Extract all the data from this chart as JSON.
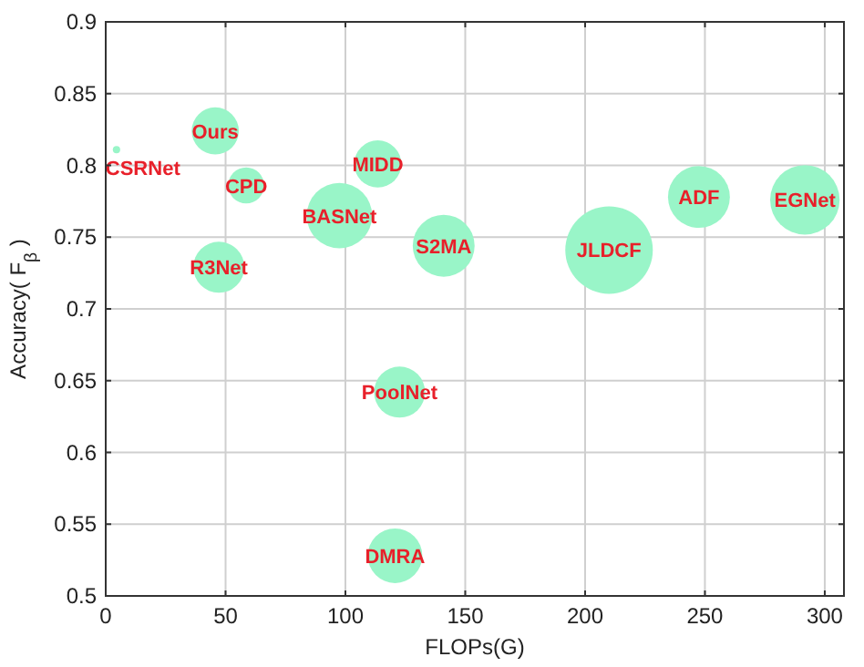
{
  "chart_data": {
    "type": "bubble",
    "xlabel": "FLOPs(G)",
    "ylabel": "Accuracy( F$_{β}$ )",
    "xlim": [
      0,
      308
    ],
    "ylim": [
      0.5,
      0.9
    ],
    "xticks": [
      0,
      50,
      100,
      150,
      200,
      250,
      300
    ],
    "yticks": [
      0.5,
      0.55,
      0.6,
      0.65,
      0.7,
      0.75,
      0.8,
      0.85,
      0.9
    ],
    "grid": true,
    "series": [
      {
        "name": "CSRNet",
        "color": "#99f5c8",
        "x": [
          4.5
        ],
        "values": [
          0.811
        ],
        "sizes": [
          0.007
        ]
      },
      {
        "name": "Ours",
        "color": "#99f5c8",
        "x": [
          45.7
        ],
        "values": [
          0.824
        ],
        "sizes": [
          0.29
        ]
      },
      {
        "name": "CPD",
        "color": "#99f5c8",
        "x": [
          58.6
        ],
        "values": [
          0.786
        ],
        "sizes": [
          0.17
        ]
      },
      {
        "name": "MIDD",
        "color": "#99f5c8",
        "x": [
          113.5
        ],
        "values": [
          0.801
        ],
        "sizes": [
          0.29
        ]
      },
      {
        "name": "BASNet",
        "color": "#99f5c8",
        "x": [
          97.5
        ],
        "values": [
          0.765
        ],
        "sizes": [
          0.56
        ]
      },
      {
        "name": "S2MA",
        "color": "#99f5c8",
        "x": [
          141
        ],
        "values": [
          0.744
        ],
        "sizes": [
          0.5
        ]
      },
      {
        "name": "JLDCF",
        "color": "#99f5c8",
        "x": [
          210
        ],
        "values": [
          0.741
        ],
        "sizes": [
          1
        ]
      },
      {
        "name": "ADF",
        "color": "#99f5c8",
        "x": [
          247.5
        ],
        "values": [
          0.778
        ],
        "sizes": [
          0.5
        ]
      },
      {
        "name": "EGNet",
        "color": "#99f5c8",
        "x": [
          291.7
        ],
        "values": [
          0.776
        ],
        "sizes": [
          0.63
        ]
      },
      {
        "name": "R3Net",
        "color": "#99f5c8",
        "x": [
          47.2
        ],
        "values": [
          0.729
        ],
        "sizes": [
          0.34
        ]
      },
      {
        "name": "PoolNet",
        "color": "#99f5c8",
        "x": [
          122.6
        ],
        "values": [
          0.642
        ],
        "sizes": [
          0.34
        ]
      },
      {
        "name": "DMRA",
        "color": "#99f5c8",
        "x": [
          120.7
        ],
        "values": [
          0.528
        ],
        "sizes": [
          0.39
        ]
      }
    ]
  }
}
